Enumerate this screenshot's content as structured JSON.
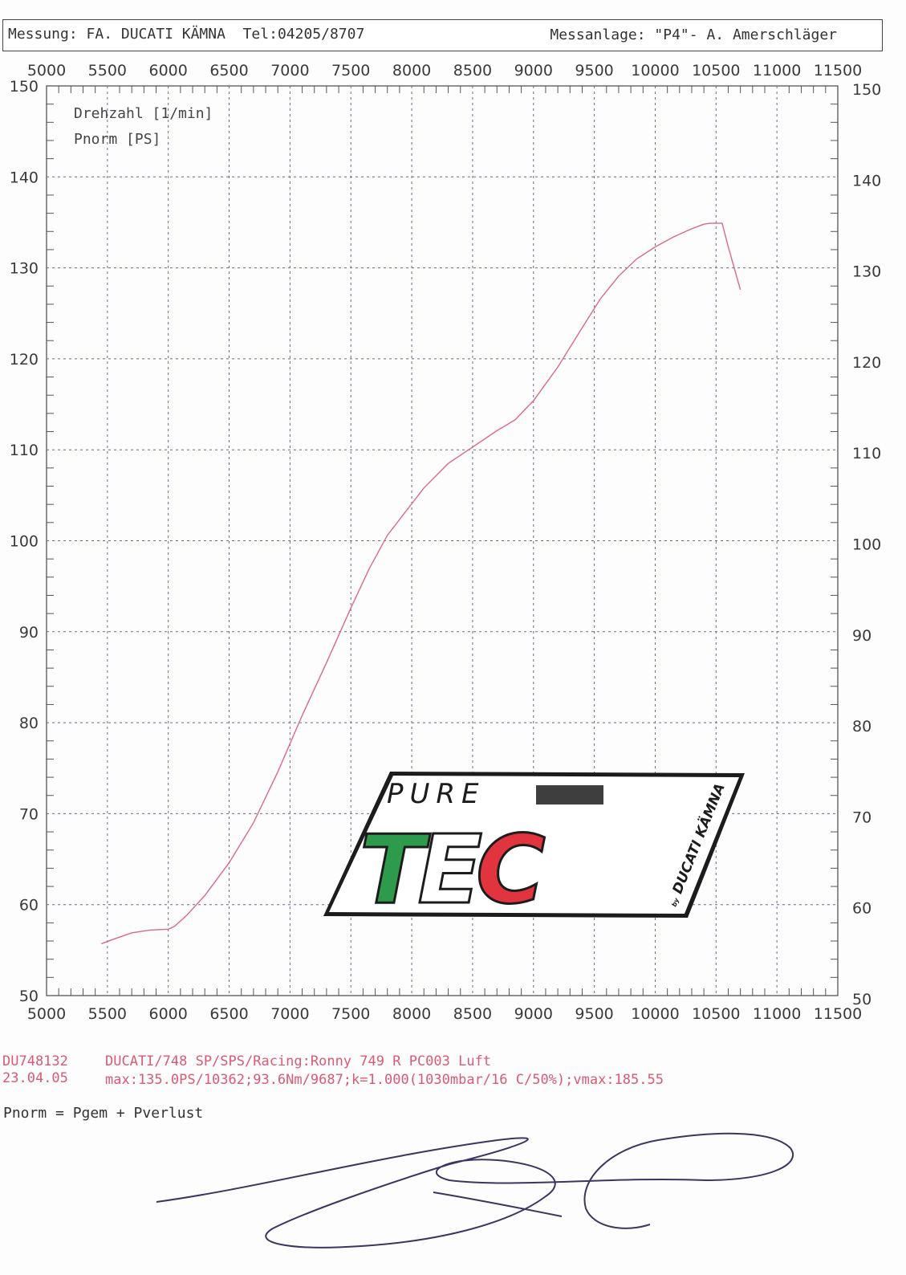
{
  "header": {
    "left_text": "Messung: FA. DUCATI KÄMNA  Tel:04205/8707",
    "right_text": "Messanlage: \"P4\"- A. Amerschläger"
  },
  "legend": [
    "Drehzahl [1/min]",
    "Pnorm [PS]"
  ],
  "logo": {
    "word_top": "PURE",
    "word_main": "TEC",
    "byline_small": "by",
    "byline": "DUCATI KÄMNA",
    "colors": {
      "green": "#2e9a4c",
      "red": "#e2343f",
      "dark": "#1c1c1c"
    }
  },
  "footer": {
    "id": "DU748132",
    "date": "23.04.05",
    "vehicle": "DUCATI/748 SP/SPS/Racing:Ronny 749 R PC003 Luft",
    "max_line": "max:135.0PS/10362;93.6Nm/9687;k=1.000(1030mbar/16 C/50%);vmax:185.55",
    "formula": "Pnorm = Pgem + Pverlust"
  },
  "chart_data": {
    "type": "line",
    "title": "",
    "xlabel": "Drehzahl [1/min]",
    "ylabel": "Pnorm [PS]",
    "xlim": [
      5000,
      11500
    ],
    "ylim": [
      50,
      150
    ],
    "x_ticks": [
      5000,
      5500,
      6000,
      6500,
      7000,
      7500,
      8000,
      8500,
      9000,
      9500,
      10000,
      10500,
      11000,
      11500
    ],
    "y_ticks": [
      50,
      60,
      70,
      80,
      90,
      100,
      110,
      120,
      130,
      140,
      150
    ],
    "grid": true,
    "line_color": "#d96a84",
    "series": [
      {
        "name": "Pnorm [PS]",
        "x": [
          5450,
          5550,
          5700,
          5850,
          6000,
          6050,
          6150,
          6300,
          6500,
          6700,
          6900,
          7100,
          7300,
          7500,
          7650,
          7800,
          7950,
          8100,
          8300,
          8500,
          8700,
          8850,
          9000,
          9200,
          9400,
          9550,
          9700,
          9850,
          10000,
          10150,
          10300,
          10400,
          10450,
          10550,
          10600,
          10700
        ],
        "y": [
          55.7,
          56.2,
          56.9,
          57.2,
          57.3,
          57.6,
          58.8,
          61.0,
          64.6,
          69.0,
          74.6,
          80.8,
          86.6,
          92.6,
          96.9,
          100.6,
          103.2,
          105.8,
          108.5,
          110.3,
          112.1,
          113.3,
          115.4,
          119.1,
          123.4,
          126.6,
          129.1,
          131.0,
          132.3,
          133.4,
          134.3,
          134.8,
          134.9,
          134.9,
          132.3,
          127.6
        ]
      }
    ]
  }
}
